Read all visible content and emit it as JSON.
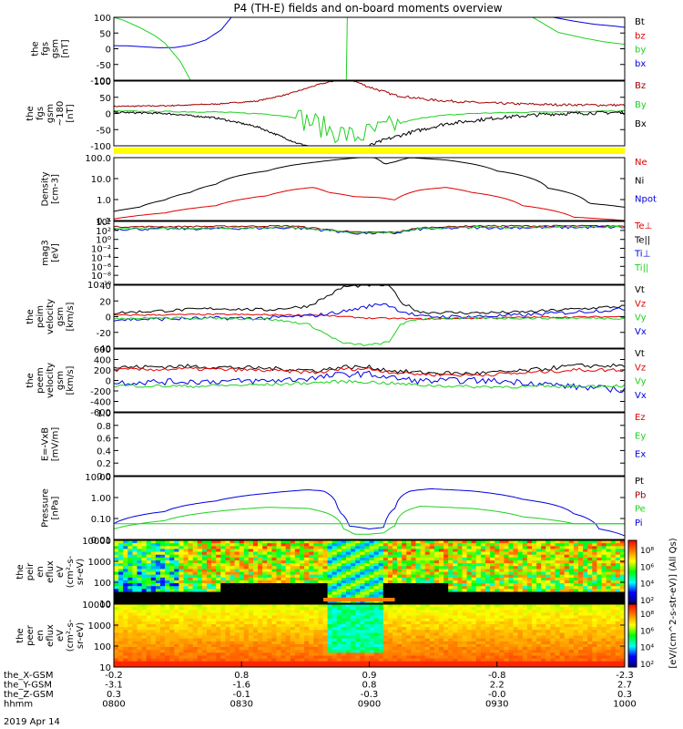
{
  "title": "P4 (TH-E) fields and on-board moments overview",
  "date_label": "2019 Apr 14",
  "colors": {
    "black": "#000000",
    "red": "#e00000",
    "green": "#20d020",
    "blue": "#0000e0",
    "darkred": "#a00000",
    "yellow": "#ffff00"
  },
  "chart_data": [
    {
      "type": "line",
      "id": "fgs",
      "ylabel": [
        "the",
        "fgs",
        "gsm",
        "[nT]"
      ],
      "yticks": [
        "100",
        "50",
        "0",
        "-50",
        "-100"
      ],
      "ylim": [
        -100,
        100
      ],
      "log": false,
      "legend": [
        {
          "text": "Bt",
          "color": "#000000"
        },
        {
          "text": "bz",
          "color": "#e00000"
        },
        {
          "text": "by",
          "color": "#20d020"
        },
        {
          "text": "bx",
          "color": "#0000e0"
        }
      ],
      "series": [
        {
          "color": "#0000e0",
          "x": [
            0,
            0.03,
            0.06,
            0.09,
            0.12,
            0.15,
            0.18,
            0.21,
            0.23
          ],
          "y": [
            10,
            9,
            6,
            3,
            4,
            12,
            28,
            60,
            100
          ]
        },
        {
          "color": "#20d020",
          "x": [
            0,
            0.02,
            0.05,
            0.08,
            0.1,
            0.13,
            0.15
          ],
          "y": [
            100,
            90,
            68,
            42,
            18,
            -40,
            -100
          ]
        },
        {
          "color": "#20d020",
          "x": [
            0.455,
            0.457
          ],
          "y": [
            -100,
            100
          ]
        },
        {
          "color": "#0000e0",
          "x": [
            0.86,
            0.9,
            0.94,
            0.98,
            1.0
          ],
          "y": [
            100,
            88,
            78,
            72,
            68
          ]
        },
        {
          "color": "#20d020",
          "x": [
            0.82,
            0.87,
            0.92,
            0.96,
            1.0
          ],
          "y": [
            100,
            52,
            34,
            22,
            14
          ]
        }
      ]
    },
    {
      "type": "line",
      "id": "fgs-gsm",
      "ylabel": [
        "the",
        "fgs",
        "gsm",
        "~180",
        "[nT]"
      ],
      "yticks": [
        "100",
        "50",
        "0",
        "-50",
        "-100"
      ],
      "ylim": [
        -120,
        100
      ],
      "log": false,
      "legend": [
        {
          "text": "Bz",
          "color": "#a00000"
        },
        {
          "text": "By",
          "color": "#20d020"
        },
        {
          "text": "Bx",
          "color": "#000000"
        }
      ],
      "series": [
        {
          "color": "#a00000",
          "noise": 2,
          "x": [
            0,
            0.1,
            0.2,
            0.28,
            0.34,
            0.4,
            0.43
          ],
          "y": [
            14,
            16,
            22,
            32,
            55,
            88,
            100
          ]
        },
        {
          "color": "#a00000",
          "noise": 4,
          "x": [
            0.47,
            0.5,
            0.55,
            0.62,
            0.72,
            0.85,
            1.0
          ],
          "y": [
            100,
            80,
            52,
            36,
            26,
            20,
            18
          ]
        },
        {
          "color": "#20d020",
          "noise": 2,
          "x": [
            0,
            0.2,
            0.3,
            0.35,
            0.39,
            0.42,
            0.47,
            0.53,
            0.57,
            0.62,
            0.7,
            0.85,
            1.0
          ],
          "y": [
            -2,
            -5,
            -12,
            -22,
            -40,
            -65,
            -90,
            -62,
            -38,
            -20,
            -10,
            -4,
            -2
          ],
          "burst": [
            0.36,
            0.56,
            40
          ]
        },
        {
          "color": "#000000",
          "noise": 3,
          "x": [
            0,
            0.1,
            0.2,
            0.28,
            0.33,
            0.36,
            0.38
          ],
          "y": [
            -6,
            -10,
            -25,
            -55,
            -90,
            -112,
            -120
          ]
        },
        {
          "color": "#000000",
          "noise": 6,
          "x": [
            0.5,
            0.53,
            0.58,
            0.65,
            0.75,
            0.85,
            1.0
          ],
          "y": [
            -120,
            -100,
            -75,
            -45,
            -25,
            -12,
            -6
          ]
        }
      ]
    },
    {
      "type": "line",
      "id": "density",
      "ylabel": [
        "Density",
        "[cm-3]"
      ],
      "yticks": [
        "100.0",
        "10.0",
        "1.0",
        "0.1"
      ],
      "ylim": [
        0.1,
        200
      ],
      "log": true,
      "legend": [
        {
          "text": "Ne",
          "color": "#e00000"
        },
        {
          "text": "Ni",
          "color": "#000000"
        },
        {
          "text": "Npot",
          "color": "#0000e0"
        }
      ],
      "series": [
        {
          "color": "#000000",
          "x": [
            0,
            0.05,
            0.1,
            0.15,
            0.2,
            0.3,
            0.4,
            0.48,
            0.51,
            0.53,
            0.55,
            0.58,
            0.65,
            0.75,
            0.85,
            0.93,
            1.0
          ],
          "y": [
            0.3,
            0.5,
            1.2,
            3,
            8,
            40,
            120,
            200,
            200,
            90,
            120,
            200,
            150,
            40,
            5,
            0.8,
            0.5
          ]
        },
        {
          "color": "#e00000",
          "x": [
            0,
            0.1,
            0.2,
            0.3,
            0.36,
            0.39,
            0.42,
            0.47,
            0.52,
            0.55,
            0.6,
            0.65,
            0.7,
            0.8,
            0.9,
            1.0
          ],
          "y": [
            0.12,
            0.25,
            0.6,
            2,
            4.5,
            5.5,
            3,
            1.8,
            1.6,
            1.2,
            4,
            5.5,
            3,
            0.6,
            0.15,
            0.1
          ]
        }
      ]
    },
    {
      "type": "line",
      "id": "temp",
      "ylabel": [
        "mag3",
        "[eV]"
      ],
      "yticks": [
        "10⁴",
        "10²",
        "10⁰",
        "10⁻²",
        "10⁻⁴",
        "10⁻⁶",
        "10⁻⁸",
        "10⁻¹⁰"
      ],
      "ylim": [
        -10,
        4
      ],
      "log": false,
      "legend": [
        {
          "text": "Te⊥",
          "color": "#e00000"
        },
        {
          "text": "Te||",
          "color": "#000000"
        },
        {
          "text": "Ti⊥",
          "color": "#0000e0"
        },
        {
          "text": "Ti||",
          "color": "#20d020"
        }
      ],
      "series": [
        {
          "color": "#a00000",
          "noise": 0.15,
          "x": [
            0,
            0.2,
            0.35,
            0.42,
            0.47,
            0.55,
            0.6,
            0.7,
            1.0
          ],
          "y": [
            2.8,
            2.9,
            3,
            2.2,
            1.6,
            1.6,
            2.6,
            3,
            3
          ]
        },
        {
          "color": "#0000e0",
          "noise": 0.3,
          "x": [
            0,
            0.2,
            0.35,
            0.42,
            0.47,
            0.55,
            0.6,
            0.7,
            1.0
          ],
          "y": [
            2.3,
            2.4,
            2.6,
            2,
            1.4,
            1.4,
            2.3,
            2.6,
            2.7
          ]
        },
        {
          "color": "#20d020",
          "noise": 0.2,
          "x": [
            0,
            0.2,
            0.35,
            0.42,
            0.47,
            0.55,
            0.6,
            0.7,
            1.0
          ],
          "y": [
            2.4,
            2.5,
            2.7,
            2.1,
            1.5,
            1.5,
            2.4,
            2.7,
            2.8
          ]
        }
      ]
    },
    {
      "type": "line",
      "id": "peim-velocity",
      "ylabel": [
        "the",
        "peim",
        "velocity",
        "gsm",
        "[km/s]"
      ],
      "yticks": [
        "40",
        "20",
        "0",
        "-20",
        "-40"
      ],
      "ylim": [
        -42,
        42
      ],
      "log": false,
      "legend": [
        {
          "text": "Vt",
          "color": "#000000"
        },
        {
          "text": "Vz",
          "color": "#e00000"
        },
        {
          "text": "Vy",
          "color": "#20d020"
        },
        {
          "text": "Vx",
          "color": "#0000e0"
        }
      ],
      "series": [
        {
          "color": "#000000",
          "noise": 2,
          "x": [
            0,
            0.1,
            0.2,
            0.3,
            0.38,
            0.42,
            0.45,
            0.5,
            0.54,
            0.56,
            0.6,
            0.7,
            0.8,
            0.9,
            1.0
          ],
          "y": [
            5,
            8,
            11,
            9,
            14,
            28,
            40,
            42,
            42,
            20,
            6,
            5,
            6,
            10,
            14
          ]
        },
        {
          "color": "#e00000",
          "noise": 1,
          "x": [
            0,
            0.2,
            0.4,
            0.5,
            0.6,
            0.8,
            1.0
          ],
          "y": [
            2,
            3,
            2,
            -2,
            -3,
            -1,
            0
          ]
        },
        {
          "color": "#0000e0",
          "noise": 2.5,
          "x": [
            0,
            0.1,
            0.2,
            0.3,
            0.4,
            0.45,
            0.5,
            0.53,
            0.56,
            0.6,
            0.7,
            0.8,
            0.9,
            1.0
          ],
          "y": [
            -4,
            -3,
            -2,
            -2,
            2,
            7,
            14,
            18,
            8,
            0,
            0,
            2,
            6,
            10
          ]
        },
        {
          "color": "#20d020",
          "noise": 1.5,
          "x": [
            0,
            0.2,
            0.3,
            0.38,
            0.42,
            0.45,
            0.5,
            0.54,
            0.56,
            0.6,
            0.7,
            1.0
          ],
          "y": [
            -2,
            -2,
            -3,
            -10,
            -25,
            -36,
            -38,
            -34,
            -10,
            -3,
            -2,
            -2
          ]
        }
      ]
    },
    {
      "type": "line",
      "id": "peem-velocity",
      "ylabel": [
        "the",
        "peem",
        "velocity",
        "gsm",
        "[km/s]"
      ],
      "yticks": [
        "600",
        "400",
        "200",
        "0",
        "-200",
        "-400",
        "-600"
      ],
      "ylim": [
        -600,
        600
      ],
      "log": false,
      "legend": [
        {
          "text": "Vt",
          "color": "#000000"
        },
        {
          "text": "Vz",
          "color": "#e00000"
        },
        {
          "text": "Vy",
          "color": "#20d020"
        },
        {
          "text": "Vx",
          "color": "#0000e0"
        }
      ],
      "series": [
        {
          "color": "#000000",
          "noise": 40,
          "x": [
            0,
            0.15,
            0.3,
            0.4,
            0.45,
            0.5,
            0.55,
            0.6,
            0.7,
            0.8,
            0.9,
            1.0
          ],
          "y": [
            250,
            270,
            230,
            190,
            260,
            250,
            180,
            150,
            130,
            180,
            280,
            280
          ]
        },
        {
          "color": "#e00000",
          "noise": 35,
          "x": [
            0,
            0.15,
            0.3,
            0.4,
            0.45,
            0.5,
            0.55,
            0.6,
            0.7,
            0.8,
            0.9,
            1.0
          ],
          "y": [
            200,
            220,
            190,
            150,
            220,
            220,
            150,
            120,
            100,
            140,
            200,
            200
          ]
        },
        {
          "color": "#0000e0",
          "noise": 60,
          "x": [
            0,
            0.15,
            0.3,
            0.4,
            0.45,
            0.5,
            0.55,
            0.6,
            0.7,
            0.8,
            0.9,
            1.0
          ],
          "y": [
            -40,
            -20,
            -10,
            50,
            120,
            120,
            40,
            -10,
            0,
            -30,
            -120,
            -180
          ]
        },
        {
          "color": "#20d020",
          "noise": 30,
          "x": [
            0,
            0.15,
            0.3,
            0.4,
            0.45,
            0.5,
            0.55,
            0.6,
            0.7,
            0.8,
            0.9,
            1.0
          ],
          "y": [
            -100,
            -110,
            -80,
            -40,
            -20,
            -30,
            -60,
            -90,
            -120,
            -120,
            -110,
            -100
          ]
        }
      ]
    },
    {
      "type": "line",
      "id": "efield",
      "ylabel": [
        "E=-VxB",
        "[mV/m]"
      ],
      "yticks": [
        "1.0",
        "0.8",
        "0.6",
        "0.4",
        "0.2",
        "0.0"
      ],
      "ylim": [
        0,
        1
      ],
      "log": false,
      "legend": [
        {
          "text": "Ez",
          "color": "#e00000"
        },
        {
          "text": "Ey",
          "color": "#20d020"
        },
        {
          "text": "Ex",
          "color": "#0000e0"
        }
      ],
      "series": []
    },
    {
      "type": "line",
      "id": "pressure",
      "ylabel": [
        "Pressure",
        "[nPa]"
      ],
      "yticks": [
        "10.00",
        "1.00",
        "0.10",
        "0.01"
      ],
      "ylim": [
        0.005,
        20
      ],
      "log": true,
      "legend": [
        {
          "text": "Pt",
          "color": "#000000"
        },
        {
          "text": "Pb",
          "color": "#a00000"
        },
        {
          "text": "Pe",
          "color": "#20d020"
        },
        {
          "text": "Pi",
          "color": "#0000e0"
        }
      ],
      "series": [
        {
          "color": "#0000e0",
          "x": [
            0,
            0.1,
            0.2,
            0.3,
            0.38,
            0.41,
            0.44,
            0.46,
            0.5,
            0.53,
            0.55,
            0.58,
            0.62,
            0.7,
            0.8,
            0.9,
            0.95,
            1.0
          ],
          "y": [
            0.04,
            0.2,
            0.8,
            2.2,
            3.5,
            3,
            0.2,
            0.03,
            0.02,
            0.025,
            0.3,
            3,
            4,
            3,
            1,
            0.15,
            0.02,
            0.008
          ]
        },
        {
          "color": "#20d020",
          "x": [
            0,
            0.1,
            0.2,
            0.3,
            0.38,
            0.42,
            0.45,
            0.47,
            0.5,
            0.53,
            0.55,
            0.57,
            0.6,
            0.7,
            0.8,
            0.9,
            1.0
          ],
          "y": [
            0.02,
            0.06,
            0.2,
            0.35,
            0.3,
            0.15,
            0.02,
            0.01,
            0.01,
            0.012,
            0.03,
            0.2,
            0.4,
            0.3,
            0.1,
            0.04,
            0.04
          ]
        },
        {
          "color": "#20d020",
          "x": [
            0,
            1.0
          ],
          "y": [
            0.04,
            0.04
          ]
        }
      ]
    },
    {
      "type": "heatmap",
      "id": "peir",
      "ylabel": [
        "the",
        "peir",
        "en",
        "eflux",
        "eV",
        "(cm²-s-",
        "sr-eV)"
      ],
      "yticks": [
        "10000",
        "1000",
        "100",
        "10"
      ],
      "ylim": [
        5,
        30000
      ],
      "log": true,
      "colorbar_ticks": [
        "10⁸",
        "10⁶",
        "10⁴",
        "10²"
      ]
    },
    {
      "type": "heatmap",
      "id": "peer",
      "ylabel": [
        "the",
        "peer",
        "en",
        "eflux",
        "eV",
        "(cm²-s-",
        "sr-eV)"
      ],
      "yticks": [
        "10000",
        "1000",
        "100",
        "10"
      ],
      "ylim": [
        5,
        30000
      ],
      "log": true,
      "colorbar_ticks": [
        "10⁸",
        "10⁶",
        "10⁴",
        "10²"
      ]
    }
  ],
  "colorbar_label": "[eV/(cm^2-s-str-eV)] (All Qs)",
  "time_axis": {
    "rows": [
      {
        "label": "the_X-GSM",
        "values": [
          "-0.2",
          "0.8",
          "0.9",
          "-0.8",
          "-2.3"
        ]
      },
      {
        "label": "the_Y-GSM",
        "values": [
          "-3.1",
          "-1.6",
          "0.8",
          "2.2",
          "2.7"
        ]
      },
      {
        "label": "the_Z-GSM",
        "values": [
          "0.3",
          "-0.1",
          "-0.3",
          "-0.0",
          "0.3"
        ]
      },
      {
        "label": "hhmm",
        "values": [
          "0800",
          "0830",
          "0900",
          "0930",
          "1000"
        ]
      }
    ]
  }
}
